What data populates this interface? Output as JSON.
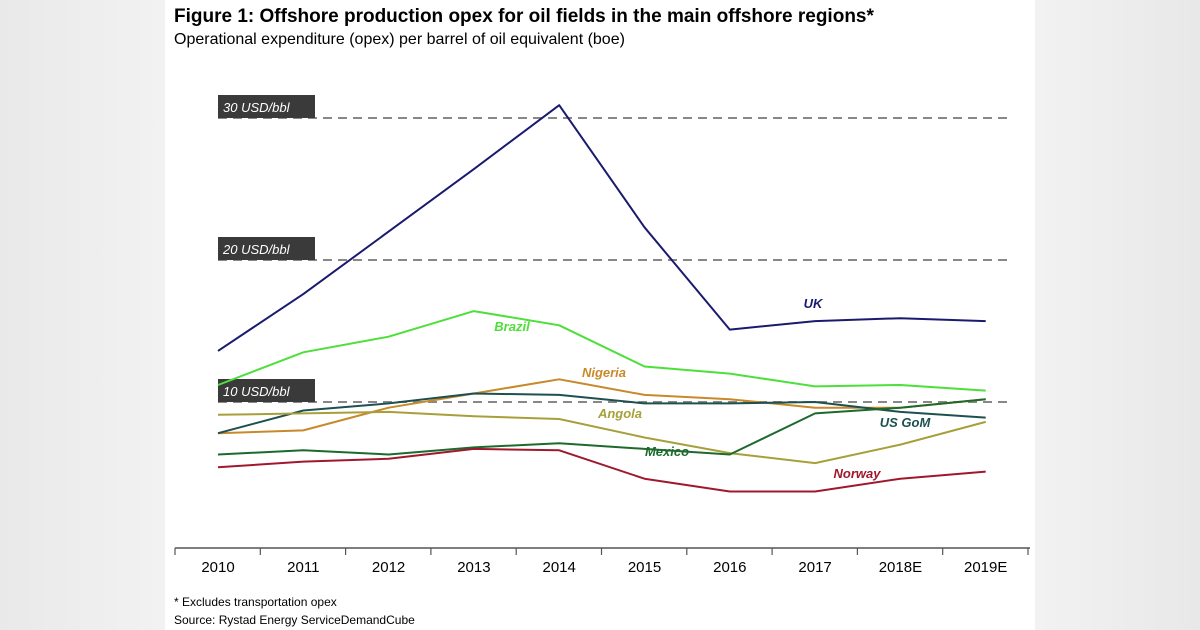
{
  "title": "Figure 1: Offshore production opex for oil fields in the main offshore regions*",
  "subtitle": "Operational expenditure (opex) per barrel of oil equivalent (boe)",
  "footnote": "* Excludes transportation opex",
  "source": "Source: Rystad Energy ServiceDemandCube",
  "chart_data": {
    "type": "line",
    "title": "Figure 1: Offshore production opex for oil fields in the main offshore regions*",
    "subtitle": "Operational expenditure (opex) per barrel of oil equivalent (boe)",
    "xlabel": "",
    "ylabel": "",
    "categories": [
      "2010",
      "2011",
      "2012",
      "2013",
      "2014",
      "2015",
      "2016",
      "2017",
      "2018E",
      "2019E"
    ],
    "ylim": [
      0,
      32
    ],
    "grid": false,
    "reference_lines": [
      {
        "value": 30,
        "label": "30 USD/bbl"
      },
      {
        "value": 20,
        "label": "20 USD/bbl"
      },
      {
        "value": 10,
        "label": "10 USD/bbl"
      }
    ],
    "series": [
      {
        "name": "UK",
        "color": "#1a1a6e",
        "values": [
          13.6,
          17.6,
          22.0,
          26.4,
          30.9,
          22.3,
          15.1,
          15.7,
          15.9,
          15.7
        ]
      },
      {
        "name": "Brazil",
        "color": "#4ddf3a",
        "values": [
          11.2,
          13.5,
          14.6,
          16.4,
          15.4,
          12.5,
          12.0,
          11.1,
          11.2,
          10.8
        ]
      },
      {
        "name": "Nigeria",
        "color": "#c8892a",
        "values": [
          7.8,
          8.0,
          9.6,
          10.6,
          11.6,
          10.5,
          10.2,
          9.6,
          9.6,
          10.2
        ]
      },
      {
        "name": "US GoM",
        "color": "#1e5050",
        "values": [
          7.8,
          9.4,
          9.9,
          10.6,
          10.5,
          9.9,
          9.9,
          10.0,
          9.3,
          8.9
        ]
      },
      {
        "name": "Angola",
        "color": "#a7a03a",
        "values": [
          9.1,
          9.2,
          9.3,
          9.0,
          8.8,
          7.5,
          6.4,
          5.7,
          7.0,
          8.6
        ]
      },
      {
        "name": "Mexico",
        "color": "#1d6a2c",
        "values": [
          6.3,
          6.6,
          6.3,
          6.8,
          7.1,
          6.7,
          6.3,
          9.2,
          9.6,
          10.2
        ]
      },
      {
        "name": "Norway",
        "color": "#a0182e",
        "values": [
          5.4,
          5.8,
          6.0,
          6.7,
          6.6,
          4.6,
          3.7,
          3.7,
          4.6,
          5.1
        ]
      }
    ]
  }
}
